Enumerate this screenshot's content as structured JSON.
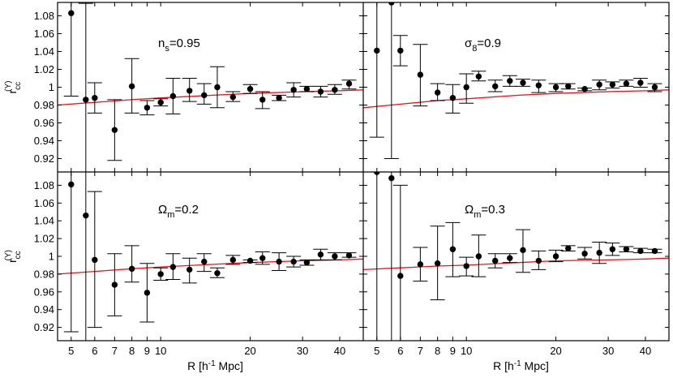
{
  "chart_data": {
    "type": "scatter",
    "layout": "2x2 panels, shared axes",
    "xlabel": {
      "prefix": "R [h",
      "sup": "-1",
      "suffix": " Mpc]"
    },
    "ylabel": {
      "main": "r",
      "sub": "cc",
      "sup": "(Υ)"
    },
    "x_scale": "log",
    "xlim": [
      4.5,
      48
    ],
    "ylim": [
      0.905,
      1.095
    ],
    "x_ticks": [
      5,
      6,
      7,
      8,
      9,
      10,
      20,
      30,
      40
    ],
    "x_tick_labels": [
      "5",
      "6",
      "7",
      "8",
      "9",
      "10",
      "20",
      "30",
      "40"
    ],
    "y_ticks": [
      0.92,
      0.94,
      0.96,
      0.98,
      1.0,
      1.02,
      1.04,
      1.06,
      1.08
    ],
    "y_tick_labels": [
      "0.92",
      "0.94",
      "0.96",
      "0.98",
      "1",
      "1.02",
      "1.04",
      "1.06",
      "1.08"
    ],
    "curve_color": "#e8141c",
    "marker_color": "#000000",
    "panels": [
      {
        "id": "top-left",
        "label": {
          "main": "n",
          "sub": "s",
          "rest": "=0.95"
        },
        "x": [
          5.0,
          5.6,
          6.0,
          7.0,
          8.0,
          9.0,
          10.0,
          11.0,
          12.5,
          14.0,
          15.5,
          17.5,
          20.0,
          22.0,
          25.0,
          28.0,
          31.0,
          34.5,
          38.5,
          43.0
        ],
        "y": [
          1.083,
          0.986,
          0.988,
          0.952,
          1.001,
          0.977,
          0.983,
          0.99,
          0.996,
          0.991,
          1.0,
          0.989,
          0.998,
          0.986,
          0.988,
          0.997,
          0.998,
          0.995,
          0.997,
          1.004
        ],
        "err_lo": [
          0.99,
          0.905,
          0.971,
          0.918,
          0.971,
          0.969,
          0.979,
          0.97,
          0.984,
          0.981,
          0.977,
          0.984,
          0.993,
          0.976,
          0.985,
          0.989,
          0.995,
          0.989,
          0.992,
          0.998
        ],
        "err_hi": [
          1.095,
          1.094,
          1.005,
          0.986,
          1.032,
          0.985,
          0.987,
          1.01,
          1.01,
          1.004,
          1.023,
          0.995,
          1.003,
          0.995,
          0.991,
          1.005,
          1.001,
          1.001,
          1.003,
          1.008
        ],
        "curve_x": [
          4.5,
          6,
          8,
          10,
          15,
          20,
          30,
          40,
          48
        ],
        "curve_y": [
          0.98,
          0.983,
          0.986,
          0.988,
          0.991,
          0.993,
          0.995,
          0.996,
          0.997
        ]
      },
      {
        "id": "top-right",
        "label": {
          "main": "σ",
          "sub": "8",
          "rest": "=0.9"
        },
        "x": [
          5.0,
          5.6,
          6.0,
          7.0,
          8.0,
          9.0,
          10.0,
          11.0,
          12.5,
          14.0,
          15.5,
          17.5,
          20.0,
          22.0,
          25.0,
          28.0,
          31.0,
          34.5,
          38.5,
          43.0
        ],
        "y": [
          1.041,
          1.095,
          1.041,
          1.014,
          0.994,
          0.988,
          1.0,
          1.012,
          1.001,
          1.007,
          1.005,
          1.002,
          1.0,
          1.001,
          0.998,
          1.003,
          1.003,
          1.004,
          1.005,
          1.0
        ],
        "err_lo": [
          0.944,
          0.92,
          1.024,
          0.979,
          0.985,
          0.971,
          0.982,
          1.007,
          0.995,
          1.001,
          1.001,
          0.994,
          0.995,
          0.998,
          0.996,
          0.997,
          0.999,
          1.001,
          1.0,
          0.995
        ],
        "err_hi": [
          1.095,
          1.095,
          1.058,
          1.048,
          1.004,
          1.003,
          1.015,
          1.018,
          1.008,
          1.013,
          1.009,
          1.008,
          1.004,
          1.004,
          0.999,
          1.008,
          1.006,
          1.008,
          1.01,
          1.004
        ],
        "curve_x": [
          4.5,
          6,
          8,
          10,
          15,
          20,
          30,
          40,
          48
        ],
        "curve_y": [
          0.977,
          0.981,
          0.985,
          0.987,
          0.991,
          0.993,
          0.995,
          0.996,
          0.997
        ]
      },
      {
        "id": "bottom-left",
        "label": {
          "main": "Ω",
          "sub": "m",
          "rest": "=0.2"
        },
        "x": [
          5.0,
          5.6,
          6.0,
          7.0,
          8.0,
          9.0,
          10.0,
          11.0,
          12.5,
          14.0,
          15.5,
          17.5,
          20.0,
          22.0,
          25.0,
          28.0,
          31.0,
          34.5,
          38.5,
          43.0
        ],
        "y": [
          1.081,
          1.046,
          0.996,
          0.968,
          0.986,
          0.959,
          0.98,
          0.988,
          0.985,
          0.994,
          0.981,
          0.996,
          0.995,
          0.998,
          0.994,
          0.994,
          0.993,
          1.002,
          1.0,
          1.001
        ],
        "err_lo": [
          0.915,
          0.905,
          0.92,
          0.933,
          0.971,
          0.926,
          0.973,
          0.974,
          0.97,
          0.983,
          0.976,
          0.991,
          0.993,
          0.991,
          0.984,
          0.988,
          0.99,
          0.996,
          0.996,
          0.999
        ],
        "err_hi": [
          1.095,
          1.095,
          1.073,
          1.003,
          1.012,
          0.992,
          0.987,
          1.003,
          0.998,
          1.003,
          0.987,
          1.001,
          0.996,
          1.005,
          1.004,
          1.0,
          0.996,
          1.008,
          1.004,
          1.004
        ],
        "curve_x": [
          4.5,
          6,
          8,
          10,
          15,
          20,
          30,
          40,
          48
        ],
        "curve_y": [
          0.98,
          0.983,
          0.986,
          0.988,
          0.991,
          0.993,
          0.995,
          0.996,
          0.997
        ]
      },
      {
        "id": "bottom-right",
        "label": {
          "main": "Ω",
          "sub": "m",
          "rest": "=0.3"
        },
        "x": [
          5.0,
          5.6,
          6.0,
          7.0,
          8.0,
          9.0,
          10.0,
          11.0,
          12.5,
          14.0,
          15.5,
          17.5,
          20.0,
          22.0,
          25.0,
          28.0,
          31.0,
          34.5,
          38.5,
          43.0
        ],
        "y": [
          1.095,
          1.088,
          0.978,
          0.991,
          0.992,
          1.008,
          0.989,
          1.0,
          0.995,
          0.998,
          1.007,
          0.995,
          1.0,
          1.009,
          1.003,
          1.004,
          1.008,
          1.008,
          1.006,
          1.006
        ],
        "err_lo": [
          0.905,
          0.905,
          0.905,
          0.972,
          0.951,
          0.977,
          0.978,
          0.977,
          0.987,
          0.993,
          0.982,
          0.985,
          0.994,
          1.006,
          0.997,
          0.992,
          1.001,
          1.005,
          1.004,
          1.004
        ],
        "err_hi": [
          1.095,
          1.095,
          1.08,
          1.01,
          1.034,
          1.038,
          0.999,
          1.024,
          1.003,
          1.003,
          1.03,
          1.006,
          1.007,
          1.012,
          1.01,
          1.016,
          1.015,
          1.011,
          1.009,
          1.008
        ],
        "curve_x": [
          4.5,
          6,
          8,
          10,
          15,
          20,
          30,
          40,
          48
        ],
        "curve_y": [
          0.985,
          0.987,
          0.989,
          0.99,
          0.993,
          0.995,
          0.996,
          0.997,
          0.998
        ]
      }
    ]
  }
}
